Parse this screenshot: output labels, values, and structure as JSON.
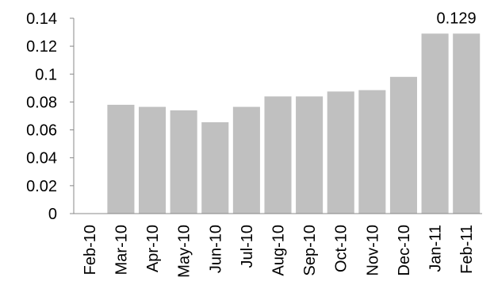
{
  "chart_data": {
    "type": "bar",
    "categories": [
      "Feb-10",
      "Mar-10",
      "Apr-10",
      "May-10",
      "Jun-10",
      "Jul-10",
      "Aug-10",
      "Sep-10",
      "Oct-10",
      "Nov-10",
      "Dec-10",
      "Jan-11",
      "Feb-11"
    ],
    "values": [
      null,
      0.078,
      0.0765,
      0.074,
      0.0655,
      0.0765,
      0.084,
      0.084,
      0.0875,
      0.0885,
      0.098,
      0.129,
      0.129
    ],
    "title": "",
    "xlabel": "",
    "ylabel": "",
    "ylim": [
      0,
      0.14
    ],
    "yticks": [
      0,
      0.02,
      0.04,
      0.06,
      0.08,
      0.1,
      0.12,
      0.14
    ],
    "ytick_labels": [
      "0",
      "0.02",
      "0.04",
      "0.06",
      "0.08",
      "0.1",
      "0.12",
      "0.14"
    ],
    "grid": false,
    "legend": "none",
    "data_labels": [
      {
        "category": "Jan-11",
        "text": "0.129"
      }
    ],
    "bar_color": "#c0c0c0",
    "axis_color": "#888888"
  }
}
